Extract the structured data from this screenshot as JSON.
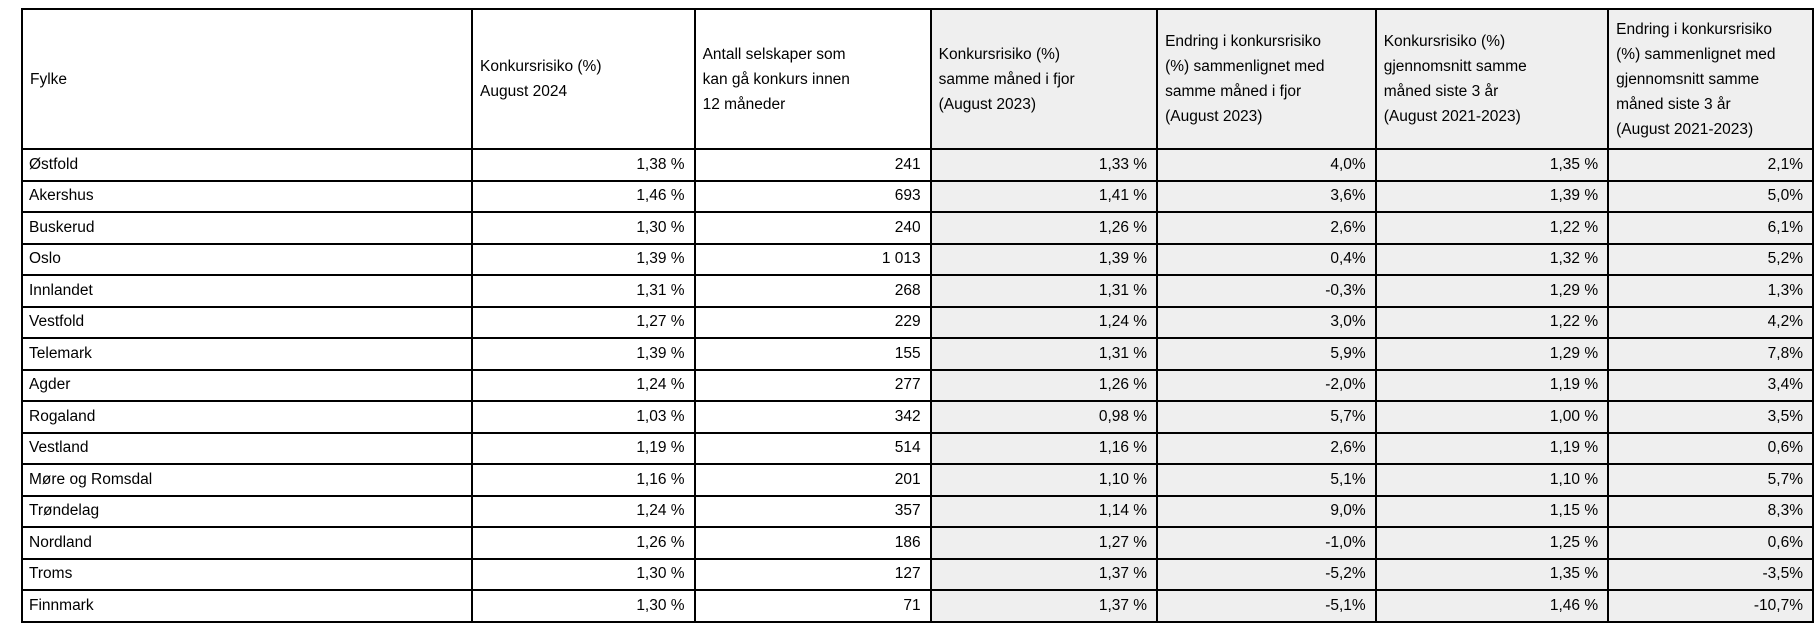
{
  "table": {
    "columns": [
      {
        "id": "fylke",
        "label": "Fylke",
        "shaded": false,
        "numeric": false
      },
      {
        "id": "risiko-aug-2024",
        "label": "Konkursrisiko (%)\nAugust 2024",
        "shaded": false,
        "numeric": true
      },
      {
        "id": "antall-selskaper",
        "label": "Antall selskaper som\nkan gå konkurs innen\n12 måneder",
        "shaded": false,
        "numeric": true
      },
      {
        "id": "risiko-aug-2023",
        "label": "Konkursrisiko (%)\nsamme måned i fjor\n(August 2023)",
        "shaded": true,
        "numeric": true
      },
      {
        "id": "endring-vs-fjor",
        "label": "Endring i konkursrisiko\n(%) sammenlignet med\nsamme måned i fjor\n(August 2023)",
        "shaded": true,
        "numeric": true
      },
      {
        "id": "risiko-snitt-3ar",
        "label": "Konkursrisiko (%)\ngjennomsnitt samme\nmåned siste 3 år\n(August 2021-2023)",
        "shaded": true,
        "numeric": true
      },
      {
        "id": "endring-vs-snitt",
        "label": "Endring i konkursrisiko\n(%) sammenlignet med\ngjennomsnitt samme\nmåned siste 3 år\n(August 2021-2023)",
        "shaded": true,
        "numeric": true
      }
    ],
    "rows": [
      {
        "cells": [
          "Østfold",
          "1,38 %",
          "241",
          "1,33 %",
          "4,0%",
          "1,35 %",
          "2,1%"
        ]
      },
      {
        "cells": [
          "Akershus",
          "1,46 %",
          "693",
          "1,41 %",
          "3,6%",
          "1,39 %",
          "5,0%"
        ]
      },
      {
        "cells": [
          "Buskerud",
          "1,30 %",
          "240",
          "1,26 %",
          "2,6%",
          "1,22 %",
          "6,1%"
        ]
      },
      {
        "cells": [
          "Oslo",
          "1,39 %",
          "1 013",
          "1,39 %",
          "0,4%",
          "1,32 %",
          "5,2%"
        ]
      },
      {
        "cells": [
          "Innlandet",
          "1,31 %",
          "268",
          "1,31 %",
          "-0,3%",
          "1,29 %",
          "1,3%"
        ]
      },
      {
        "cells": [
          "Vestfold",
          "1,27 %",
          "229",
          "1,24 %",
          "3,0%",
          "1,22 %",
          "4,2%"
        ]
      },
      {
        "cells": [
          "Telemark",
          "1,39 %",
          "155",
          "1,31 %",
          "5,9%",
          "1,29 %",
          "7,8%"
        ]
      },
      {
        "cells": [
          "Agder",
          "1,24 %",
          "277",
          "1,26 %",
          "-2,0%",
          "1,19 %",
          "3,4%"
        ]
      },
      {
        "cells": [
          "Rogaland",
          "1,03 %",
          "342",
          "0,98 %",
          "5,7%",
          "1,00 %",
          "3,5%"
        ]
      },
      {
        "cells": [
          "Vestland",
          "1,19 %",
          "514",
          "1,16 %",
          "2,6%",
          "1,19 %",
          "0,6%"
        ]
      },
      {
        "cells": [
          "Møre og Romsdal",
          "1,16 %",
          "201",
          "1,10 %",
          "5,1%",
          "1,10 %",
          "5,7%"
        ]
      },
      {
        "cells": [
          "Trøndelag",
          "1,24 %",
          "357",
          "1,14 %",
          "9,0%",
          "1,15 %",
          "8,3%"
        ]
      },
      {
        "cells": [
          "Nordland",
          "1,26 %",
          "186",
          "1,27 %",
          "-1,0%",
          "1,25 %",
          "0,6%"
        ]
      },
      {
        "cells": [
          "Troms",
          "1,30 %",
          "127",
          "1,37 %",
          "-5,2%",
          "1,35 %",
          "-3,5%"
        ]
      },
      {
        "cells": [
          "Finnmark",
          "1,30 %",
          "71",
          "1,37 %",
          "-5,1%",
          "1,46 %",
          "-10,7%"
        ]
      }
    ]
  },
  "colors": {
    "shaded_column_bg": "#efefef",
    "border": "#000000",
    "text": "#000000",
    "background": "#ffffff"
  },
  "chart_data": {
    "type": "table",
    "columns": [
      "Fylke",
      "Konkursrisiko (%) August 2024",
      "Antall selskaper som kan gå konkurs innen 12 måneder",
      "Konkursrisiko (%) samme måned i fjor (August 2023)",
      "Endring i konkursrisiko (%) sammenlignet med samme måned i fjor (August 2023)",
      "Konkursrisiko (%) gjennomsnitt samme måned siste 3 år (August 2021-2023)",
      "Endring i konkursrisiko (%) sammenlignet med gjennomsnitt samme måned siste 3 år (August 2021-2023)"
    ],
    "rows": [
      [
        "Østfold",
        1.38,
        241,
        1.33,
        4.0,
        1.35,
        2.1
      ],
      [
        "Akershus",
        1.46,
        693,
        1.41,
        3.6,
        1.39,
        5.0
      ],
      [
        "Buskerud",
        1.3,
        240,
        1.26,
        2.6,
        1.22,
        6.1
      ],
      [
        "Oslo",
        1.39,
        1013,
        1.39,
        0.4,
        1.32,
        5.2
      ],
      [
        "Innlandet",
        1.31,
        268,
        1.31,
        -0.3,
        1.29,
        1.3
      ],
      [
        "Vestfold",
        1.27,
        229,
        1.24,
        3.0,
        1.22,
        4.2
      ],
      [
        "Telemark",
        1.39,
        155,
        1.31,
        5.9,
        1.29,
        7.8
      ],
      [
        "Agder",
        1.24,
        277,
        1.26,
        -2.0,
        1.19,
        3.4
      ],
      [
        "Rogaland",
        1.03,
        342,
        0.98,
        5.7,
        1.0,
        3.5
      ],
      [
        "Vestland",
        1.19,
        514,
        1.16,
        2.6,
        1.19,
        0.6
      ],
      [
        "Møre og Romsdal",
        1.16,
        201,
        1.1,
        5.1,
        1.1,
        5.7
      ],
      [
        "Trøndelag",
        1.24,
        357,
        1.14,
        9.0,
        1.15,
        8.3
      ],
      [
        "Nordland",
        1.26,
        186,
        1.27,
        -1.0,
        1.25,
        0.6
      ],
      [
        "Troms",
        1.3,
        127,
        1.37,
        -5.2,
        1.35,
        -3.5
      ],
      [
        "Finnmark",
        1.3,
        71,
        1.37,
        -5.1,
        1.46,
        -10.7
      ]
    ],
    "units": {
      "percent_columns_format": "1,38 %",
      "change_columns_format": "4,0%",
      "thousands_separator": "space"
    },
    "legend_position": "none",
    "grid": true
  }
}
